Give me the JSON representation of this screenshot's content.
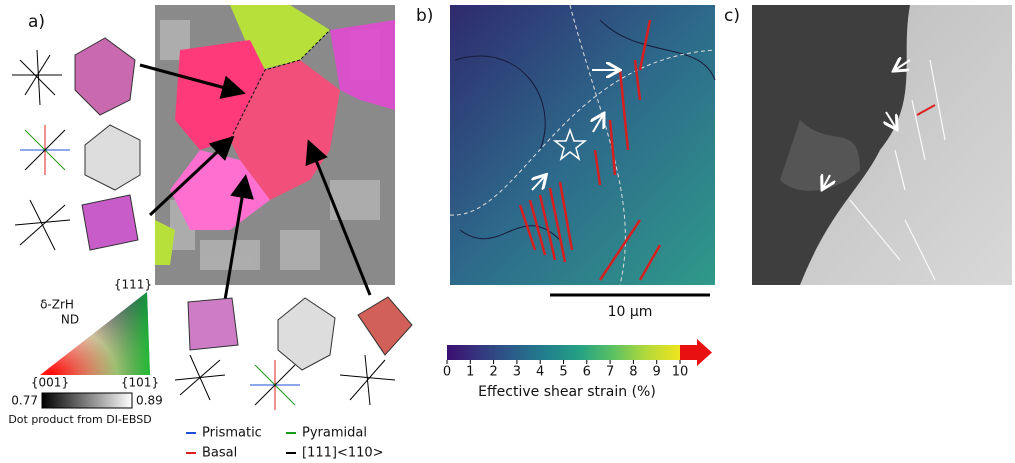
{
  "panel_a": {
    "label": "a)",
    "phase": "δ-ZrH",
    "direction": "ND",
    "ipf_corners": [
      "{111}",
      "{001}",
      "{101}"
    ],
    "gray_scale": {
      "min_label": "0.77",
      "max_label": "0.89",
      "title": "Dot product from DI-EBSD"
    },
    "legend": [
      {
        "name": "Prismatic",
        "color": "#1f4fd8"
      },
      {
        "name": "Pyramidal",
        "color": "#1a9a1a"
      },
      {
        "name": "Basal",
        "color": "#e02020"
      },
      {
        "name": "[111]<110>",
        "color": "#000000"
      }
    ]
  },
  "panel_b": {
    "label": "b)",
    "scale_bar": "10 μm",
    "colorbar": {
      "title": "Effective shear strain (%)",
      "lim": [
        0,
        10
      ],
      "ticks": [
        0,
        1,
        2,
        3,
        4,
        5,
        6,
        7,
        8,
        9,
        10
      ],
      "colors": [
        "#3b0f70",
        "#35377f",
        "#2a5d8a",
        "#21808c",
        "#25a283",
        "#5cc163",
        "#b4d93a",
        "#f0e51f"
      ]
    }
  },
  "panel_c": {
    "label": "c)"
  }
}
